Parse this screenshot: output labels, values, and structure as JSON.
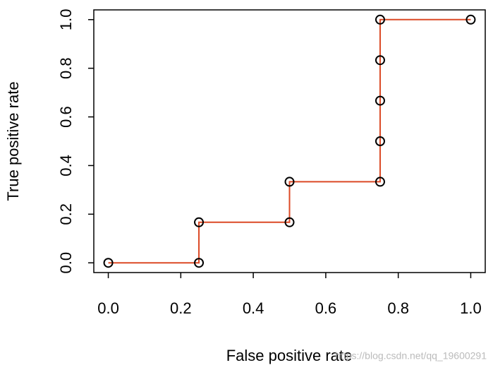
{
  "chart_data": {
    "type": "line",
    "x_label": "False positive rate",
    "y_label": "True positive rate",
    "x": [
      0,
      0.25,
      0.25,
      0.5,
      0.5,
      0.75,
      0.75,
      0.75,
      0.75,
      0.75,
      1
    ],
    "values": [
      0,
      0,
      0.1667,
      0.1667,
      0.3333,
      0.3333,
      0.5,
      0.6667,
      0.8333,
      1,
      1
    ],
    "color": "#dc4a26",
    "marker_color": "#000000",
    "xlim": [
      -0.04,
      1.04
    ],
    "ylim": [
      -0.04,
      1.04
    ],
    "xticks": [
      {
        "value": 0,
        "label": "0.0"
      },
      0.2,
      0.4,
      0.6,
      0.8,
      {
        "value": 1,
        "label": "1.0"
      }
    ],
    "yticks": [
      {
        "value": 0,
        "label": "0.0"
      },
      0.2,
      0.4,
      0.6,
      0.8,
      {
        "value": 1,
        "label": "1.0"
      }
    ],
    "watermark": "https://blog.csdn.net/qq_19600291"
  }
}
